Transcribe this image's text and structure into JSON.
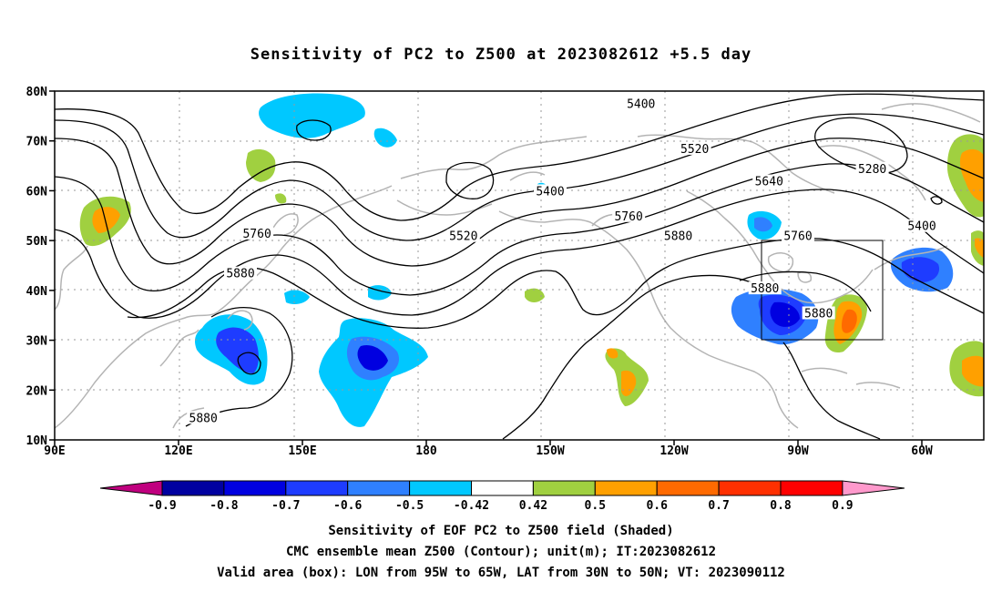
{
  "title": "Sensitivity of PC2 to Z500 at 2023082612 +5.5 day",
  "lat_labels": [
    "80N",
    "70N",
    "60N",
    "50N",
    "40N",
    "30N",
    "20N",
    "10N"
  ],
  "lon_labels": [
    "90E",
    "120E",
    "150E",
    "180",
    "150W",
    "120W",
    "90W",
    "60W"
  ],
  "contour_labels": [
    {
      "text": "5400",
      "lon": 232,
      "lat": 77.5
    },
    {
      "text": "5520",
      "lon": 245,
      "lat": 68.5
    },
    {
      "text": "5280",
      "lon": 288,
      "lat": 64.5
    },
    {
      "text": "5400",
      "lon": 210,
      "lat": 60.0
    },
    {
      "text": "5640",
      "lon": 263,
      "lat": 62.0
    },
    {
      "text": "5760",
      "lon": 229,
      "lat": 55.0
    },
    {
      "text": "5400",
      "lon": 300,
      "lat": 53.0
    },
    {
      "text": "5520",
      "lon": 189,
      "lat": 51.0
    },
    {
      "text": "5880",
      "lon": 241,
      "lat": 51.0
    },
    {
      "text": "5760",
      "lon": 139,
      "lat": 51.5
    },
    {
      "text": "5760",
      "lon": 270,
      "lat": 51.0
    },
    {
      "text": "5880",
      "lon": 135,
      "lat": 43.5
    },
    {
      "text": "5880",
      "lon": 262,
      "lat": 40.5
    },
    {
      "text": "5880",
      "lon": 275,
      "lat": 35.5
    },
    {
      "text": "5880",
      "lon": 126,
      "lat": 14.5
    }
  ],
  "colorbar": {
    "ticks": [
      "-0.9",
      "-0.8",
      "-0.7",
      "-0.6",
      "-0.5",
      "-0.42",
      "0.42",
      "0.5",
      "0.6",
      "0.7",
      "0.8",
      "0.9"
    ],
    "colors": [
      "#ff99cc",
      "#0000a0",
      "#0000e0",
      "#1e3cff",
      "#2f80ff",
      "#00c8ff",
      "#ffffff",
      "#a0d040",
      "#ffa000",
      "#ff6a00",
      "#ff3000",
      "#ff0000",
      "#ff99cc"
    ],
    "low_end_color": "#c0007f",
    "high_end_color": "#ff99cc"
  },
  "box": {
    "lon_min": 265,
    "lon_max": 295,
    "lat_min": 30,
    "lat_max": 50
  },
  "captions": {
    "line1": "Sensitivity of EOF PC2 to Z500 field (Shaded)",
    "line2": "CMC ensemble mean Z500 (Contour); unit(m); IT:2023082612",
    "line3": "Valid area (box): LON from 95W to 65W, LAT from 30N to 50N; VT: 2023090112"
  }
}
